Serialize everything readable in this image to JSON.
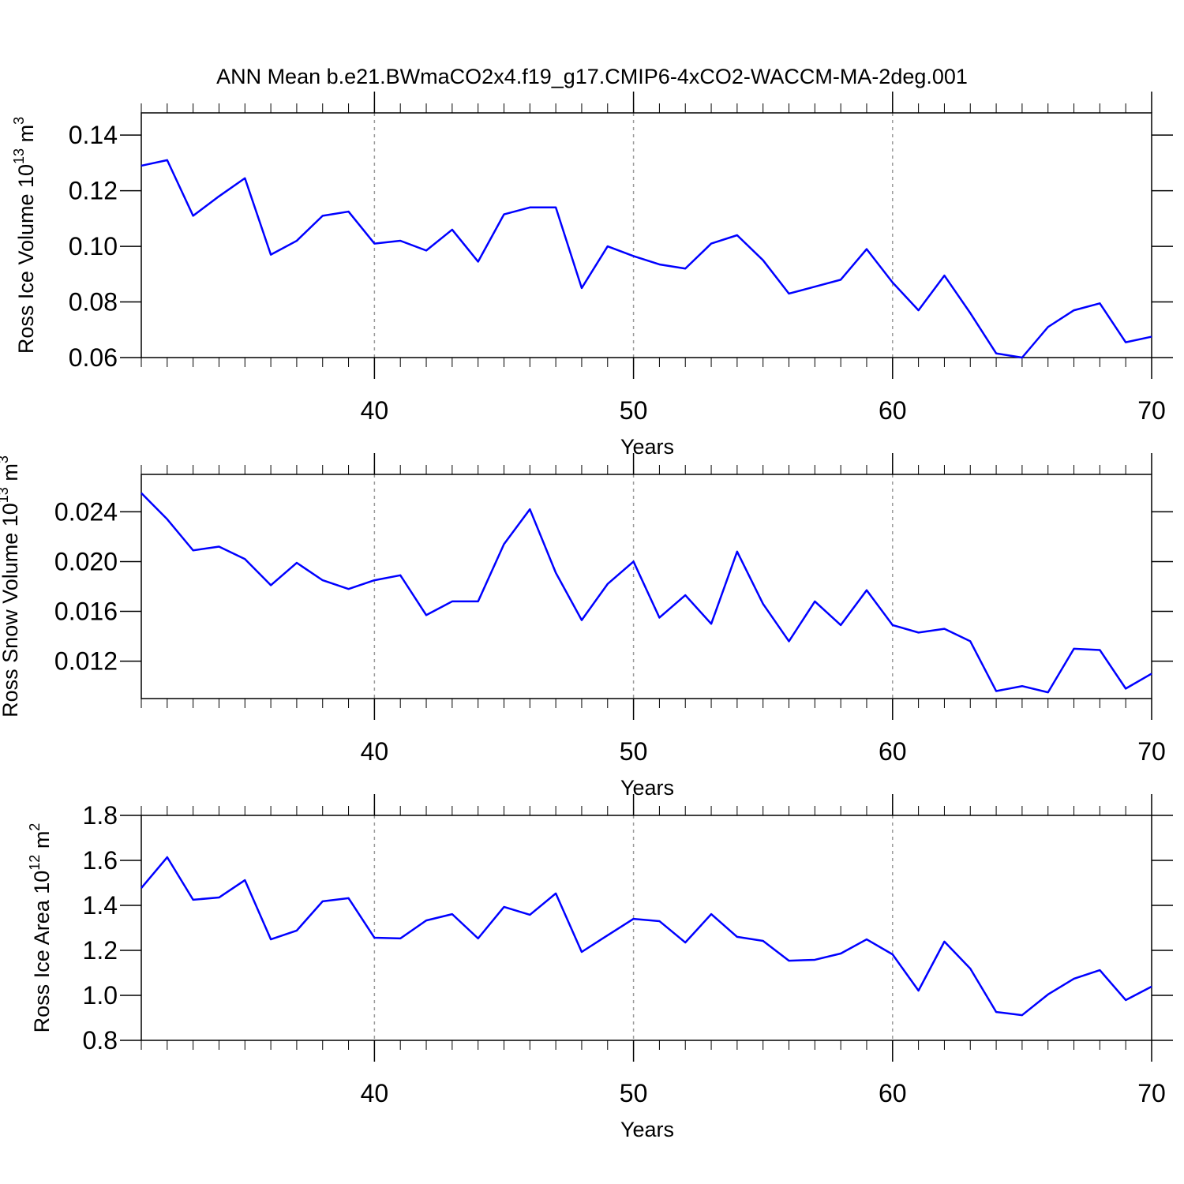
{
  "chart_data": [
    {
      "type": "line",
      "title": "ANN Mean b.e21.BWmaCO2x4.f19_g17.CMIP6-4xCO2-WACCM-MA-2deg.001",
      "ylabel": {
        "text": "Ross Ice Volume 10",
        "exp": "13",
        "unit": " m",
        "unit_exp": "3"
      },
      "xlabel": "Years",
      "x": [
        31,
        32,
        33,
        34,
        35,
        36,
        37,
        38,
        39,
        40,
        41,
        42,
        43,
        44,
        45,
        46,
        47,
        48,
        49,
        50,
        51,
        52,
        53,
        54,
        55,
        56,
        57,
        58,
        59,
        60,
        61,
        62,
        63,
        64,
        65,
        66,
        67,
        68,
        69,
        70
      ],
      "series": [
        {
          "color": "#0000ff",
          "values": [
            0.129,
            0.131,
            0.111,
            0.118,
            0.1245,
            0.097,
            0.102,
            0.111,
            0.1125,
            0.101,
            0.102,
            0.0985,
            0.106,
            0.0945,
            0.1115,
            0.114,
            0.114,
            0.085,
            0.1,
            0.0965,
            0.0935,
            0.092,
            0.101,
            0.104,
            0.095,
            0.083,
            0.0855,
            0.088,
            0.099,
            0.087,
            0.077,
            0.0895,
            0.076,
            0.0615,
            0.06,
            0.071,
            0.077,
            0.0795,
            0.0655,
            0.0675
          ]
        }
      ],
      "xlim": [
        31,
        70
      ],
      "xticks": [
        40,
        50,
        60,
        70
      ],
      "ylim": [
        0.06,
        0.148
      ],
      "yticks": [
        0.14,
        0.12,
        {
          "value": 0.1,
          "label": "0.10"
        },
        0.08,
        0.06
      ],
      "grid": "x-dotted"
    },
    {
      "type": "line",
      "ylabel": {
        "text": "Ross Snow Volume 10",
        "exp": "13",
        "unit": " m",
        "unit_exp": "3"
      },
      "xlabel": "Years",
      "x": [
        31,
        32,
        33,
        34,
        35,
        36,
        37,
        38,
        39,
        40,
        41,
        42,
        43,
        44,
        45,
        46,
        47,
        48,
        49,
        50,
        51,
        52,
        53,
        54,
        55,
        56,
        57,
        58,
        59,
        60,
        61,
        62,
        63,
        64,
        65,
        66,
        67,
        68,
        69,
        70
      ],
      "series": [
        {
          "color": "#0000ff",
          "values": [
            0.0255,
            0.0234,
            0.0209,
            0.0212,
            0.0202,
            0.0181,
            0.0199,
            0.0185,
            0.0178,
            0.0185,
            0.0189,
            0.0157,
            0.0168,
            0.0168,
            0.0214,
            0.0242,
            0.0191,
            0.0153,
            0.0182,
            0.02,
            0.0155,
            0.0173,
            0.015,
            0.0208,
            0.0166,
            0.0136,
            0.0168,
            0.0149,
            0.0177,
            0.0149,
            0.0143,
            0.0146,
            0.0136,
            0.0096,
            0.01,
            0.0095,
            0.013,
            0.0129,
            0.0098,
            0.011
          ]
        }
      ],
      "xlim": [
        31,
        70
      ],
      "xticks": [
        40,
        50,
        60,
        70
      ],
      "ylim": [
        0.009,
        0.027
      ],
      "yticks": [
        0.024,
        {
          "value": 0.02,
          "label": "0.020"
        },
        0.016,
        0.012
      ],
      "grid": "x-dotted"
    },
    {
      "type": "line",
      "ylabel": {
        "text": "Ross Ice Area 10",
        "exp": "12",
        "unit": " m",
        "unit_exp": "2"
      },
      "xlabel": "Years",
      "x": [
        31,
        32,
        33,
        34,
        35,
        36,
        37,
        38,
        39,
        40,
        41,
        42,
        43,
        44,
        45,
        46,
        47,
        48,
        49,
        50,
        51,
        52,
        53,
        54,
        55,
        56,
        57,
        58,
        59,
        60,
        61,
        62,
        63,
        64,
        65,
        66,
        67,
        68,
        69,
        70
      ],
      "series": [
        {
          "color": "#0000ff",
          "values": [
            1.477,
            1.614,
            1.425,
            1.435,
            1.512,
            1.249,
            1.288,
            1.418,
            1.432,
            1.256,
            1.253,
            1.333,
            1.361,
            1.253,
            1.393,
            1.358,
            1.453,
            1.193,
            1.267,
            1.34,
            1.33,
            1.235,
            1.361,
            1.26,
            1.242,
            1.154,
            1.158,
            1.186,
            1.249,
            1.182,
            1.021,
            1.239,
            1.119,
            0.926,
            0.912,
            1.004,
            1.074,
            1.112,
            0.979,
            1.039
          ]
        }
      ],
      "xlim": [
        31,
        70
      ],
      "xticks": [
        40,
        50,
        60,
        70
      ],
      "ylim": [
        0.8,
        1.8
      ],
      "yticks": [
        1.8,
        1.6,
        1.4,
        1.2,
        {
          "value": 1.0,
          "label": "1.0"
        },
        0.8
      ],
      "grid": "x-dotted"
    }
  ]
}
